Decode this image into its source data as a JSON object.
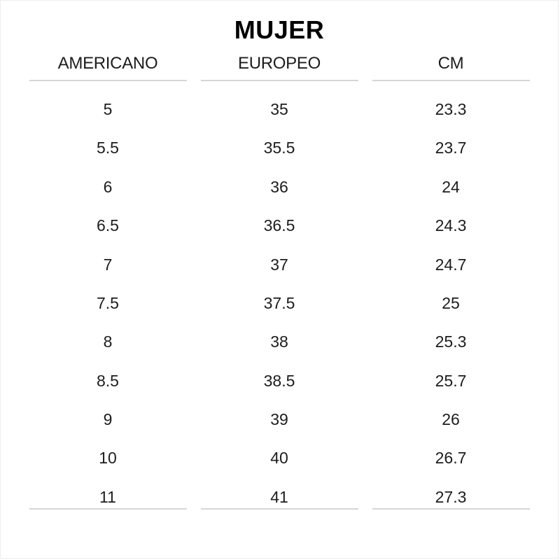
{
  "title": "MUJER",
  "colors": {
    "background": "#ffffff",
    "title_text": "#000000",
    "body_text": "#1d1d1d",
    "rule": "#d6d6d6",
    "page_edge": "#eeeeee"
  },
  "chart_data": {
    "type": "table",
    "title": "MUJER",
    "columns": [
      "AMERICANO",
      "EUROPEO",
      "CM"
    ],
    "rows": [
      [
        "5",
        "35",
        "23.3"
      ],
      [
        "5.5",
        "35.5",
        "23.7"
      ],
      [
        "6",
        "36",
        "24"
      ],
      [
        "6.5",
        "36.5",
        "24.3"
      ],
      [
        "7",
        "37",
        "24.7"
      ],
      [
        "7.5",
        "37.5",
        "25"
      ],
      [
        "8",
        "38",
        "25.3"
      ],
      [
        "8.5",
        "38.5",
        "25.7"
      ],
      [
        "9",
        "39",
        "26"
      ],
      [
        "10",
        "40",
        "26.7"
      ],
      [
        "11",
        "41",
        "27.3"
      ]
    ],
    "layout": {
      "header_underline": true,
      "row_separators": false,
      "bottom_underline": true,
      "column_alignment": "center"
    }
  }
}
